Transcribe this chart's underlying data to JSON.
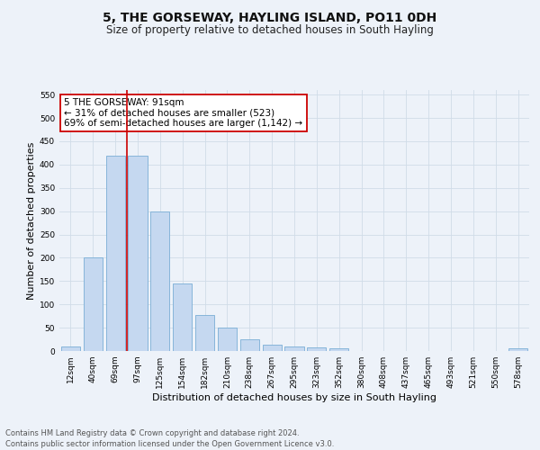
{
  "title": "5, THE GORSEWAY, HAYLING ISLAND, PO11 0DH",
  "subtitle": "Size of property relative to detached houses in South Hayling",
  "xlabel": "Distribution of detached houses by size in South Hayling",
  "ylabel": "Number of detached properties",
  "bar_labels": [
    "12sqm",
    "40sqm",
    "69sqm",
    "97sqm",
    "125sqm",
    "154sqm",
    "182sqm",
    "210sqm",
    "238sqm",
    "267sqm",
    "295sqm",
    "323sqm",
    "352sqm",
    "380sqm",
    "408sqm",
    "437sqm",
    "465sqm",
    "493sqm",
    "521sqm",
    "550sqm",
    "578sqm"
  ],
  "bar_values": [
    10,
    200,
    420,
    420,
    300,
    145,
    78,
    50,
    25,
    13,
    10,
    8,
    5,
    0,
    0,
    0,
    0,
    0,
    0,
    0,
    5
  ],
  "bar_color": "#c5d8f0",
  "bar_edge_color": "#7aaed6",
  "vline_color": "#cc0000",
  "annotation_text": "5 THE GORSEWAY: 91sqm\n← 31% of detached houses are smaller (523)\n69% of semi-detached houses are larger (1,142) →",
  "annotation_box_color": "#ffffff",
  "annotation_box_edge": "#cc0000",
  "ylim": [
    0,
    560
  ],
  "yticks": [
    0,
    50,
    100,
    150,
    200,
    250,
    300,
    350,
    400,
    450,
    500,
    550
  ],
  "grid_color": "#d0dce8",
  "bg_color": "#edf2f9",
  "footer_text": "Contains HM Land Registry data © Crown copyright and database right 2024.\nContains public sector information licensed under the Open Government Licence v3.0.",
  "title_fontsize": 10,
  "subtitle_fontsize": 8.5,
  "axis_label_fontsize": 8,
  "tick_fontsize": 6.5,
  "annotation_fontsize": 7.5,
  "footer_fontsize": 6
}
